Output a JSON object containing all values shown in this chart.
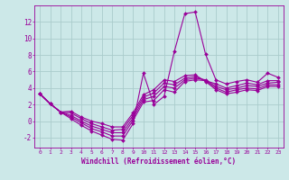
{
  "xlabel": "Windchill (Refroidissement éolien,°C)",
  "background_color": "#cce8e8",
  "grid_color": "#aacccc",
  "line_color": "#990099",
  "xlim": [
    -0.5,
    23.5
  ],
  "ylim": [
    -3.2,
    14.0
  ],
  "xticks": [
    0,
    1,
    2,
    3,
    4,
    5,
    6,
    7,
    8,
    9,
    10,
    11,
    12,
    13,
    14,
    15,
    16,
    17,
    18,
    19,
    20,
    21,
    22,
    23
  ],
  "yticks": [
    -2,
    0,
    2,
    4,
    6,
    8,
    10,
    12
  ],
  "series": [
    [
      3.3,
      2.1,
      1.1,
      0.3,
      -0.5,
      -1.2,
      -1.7,
      -2.2,
      -2.3,
      -0.3,
      5.8,
      2.0,
      3.0,
      8.5,
      13.0,
      13.2,
      8.1,
      5.0,
      4.5,
      4.8,
      5.0,
      4.7,
      5.8,
      5.3
    ],
    [
      3.3,
      2.1,
      1.1,
      0.5,
      -0.2,
      -0.9,
      -1.3,
      -1.8,
      -1.8,
      0.1,
      2.3,
      2.5,
      3.8,
      3.5,
      4.8,
      5.0,
      4.9,
      4.5,
      4.0,
      4.3,
      4.6,
      4.4,
      4.9,
      4.9
    ],
    [
      3.3,
      2.1,
      1.1,
      0.7,
      0.0,
      -0.6,
      -1.0,
      -1.4,
      -1.4,
      0.4,
      2.6,
      3.0,
      4.2,
      4.0,
      5.0,
      5.2,
      5.0,
      4.2,
      3.8,
      4.0,
      4.3,
      4.2,
      4.6,
      4.7
    ],
    [
      3.3,
      2.1,
      1.1,
      1.0,
      0.3,
      -0.3,
      -0.7,
      -1.1,
      -1.0,
      0.7,
      2.9,
      3.4,
      4.6,
      4.4,
      5.2,
      5.4,
      4.9,
      4.0,
      3.5,
      3.8,
      4.0,
      3.9,
      4.4,
      4.4
    ],
    [
      3.3,
      2.1,
      1.1,
      1.2,
      0.5,
      0.0,
      -0.3,
      -0.7,
      -0.7,
      1.0,
      3.2,
      3.8,
      5.0,
      4.8,
      5.5,
      5.6,
      4.8,
      3.8,
      3.3,
      3.5,
      3.8,
      3.7,
      4.2,
      4.2
    ]
  ]
}
